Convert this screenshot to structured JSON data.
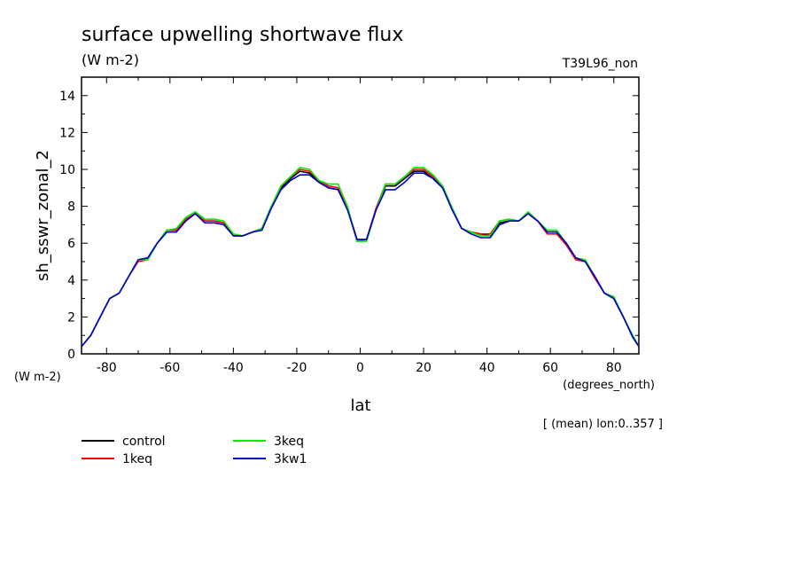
{
  "chart_data": {
    "type": "line",
    "title": "surface upwelling shortwave flux",
    "subtitle": "(W m-2)",
    "experiment_label": "T39L96_non",
    "ylabel": "sh_sswr_zonal_2",
    "yunits": "(W m-2)",
    "xlabel": "lat",
    "xunits": "(degrees_north)",
    "note": "[ (mean) lon:0..357 ]",
    "xlim": [
      -87.9,
      87.9
    ],
    "ylim": [
      0,
      15
    ],
    "xticks": [
      -80,
      -60,
      -40,
      -20,
      0,
      20,
      40,
      60,
      80
    ],
    "yticks": [
      0,
      2,
      4,
      6,
      8,
      10,
      12,
      14
    ],
    "x": [
      -87.9,
      -85,
      -82,
      -79,
      -76,
      -73,
      -70,
      -67,
      -64,
      -61,
      -58,
      -55,
      -52,
      -49,
      -46,
      -43,
      -40,
      -37,
      -34,
      -31,
      -28,
      -25,
      -22,
      -19,
      -16,
      -13,
      -10,
      -7,
      -4,
      -1,
      2,
      5,
      8,
      11,
      14,
      17,
      20,
      23,
      26,
      29,
      32,
      35,
      38,
      41,
      44,
      47,
      50,
      53,
      56,
      59,
      62,
      65,
      68,
      71,
      74,
      77,
      80,
      83,
      86,
      87.9
    ],
    "series": [
      {
        "name": "control",
        "color": "#000000",
        "values": [
          0.4,
          1.0,
          2.0,
          3.0,
          3.3,
          4.2,
          5.1,
          5.2,
          6.0,
          6.7,
          6.7,
          7.3,
          7.6,
          7.2,
          7.2,
          7.1,
          6.4,
          6.4,
          6.6,
          6.8,
          8.0,
          9.0,
          9.5,
          9.9,
          9.8,
          9.3,
          9.0,
          8.9,
          7.9,
          6.2,
          6.2,
          7.8,
          9.1,
          9.1,
          9.5,
          9.9,
          9.9,
          9.5,
          9.0,
          7.9,
          6.8,
          6.6,
          6.5,
          6.4,
          7.1,
          7.2,
          7.2,
          7.6,
          7.2,
          6.6,
          6.6,
          6.0,
          5.2,
          5.0,
          4.2,
          3.3,
          3.0,
          2.0,
          0.9,
          0.4
        ]
      },
      {
        "name": "1keq",
        "color": "#ff0000",
        "values": [
          0.4,
          1.0,
          2.0,
          3.0,
          3.3,
          4.2,
          5.0,
          5.1,
          6.0,
          6.7,
          6.7,
          7.3,
          7.6,
          7.2,
          7.2,
          7.1,
          6.4,
          6.4,
          6.6,
          6.8,
          8.0,
          9.1,
          9.6,
          10.0,
          9.9,
          9.4,
          9.1,
          9.0,
          7.9,
          6.1,
          6.2,
          7.9,
          9.2,
          9.2,
          9.6,
          10.0,
          10.0,
          9.6,
          9.1,
          7.9,
          6.8,
          6.6,
          6.5,
          6.5,
          7.2,
          7.3,
          7.2,
          7.6,
          7.2,
          6.5,
          6.5,
          5.9,
          5.1,
          5.0,
          4.1,
          3.3,
          3.0,
          2.0,
          0.9,
          0.4
        ]
      },
      {
        "name": "3keq",
        "color": "#00ee00",
        "values": [
          0.4,
          1.0,
          2.0,
          3.0,
          3.3,
          4.2,
          5.1,
          5.1,
          6.0,
          6.7,
          6.8,
          7.4,
          7.7,
          7.3,
          7.3,
          7.2,
          6.5,
          6.4,
          6.6,
          6.8,
          8.0,
          9.1,
          9.6,
          10.1,
          10.0,
          9.4,
          9.2,
          9.2,
          8.0,
          6.1,
          6.1,
          7.8,
          9.2,
          9.2,
          9.6,
          10.1,
          10.1,
          9.7,
          9.1,
          7.9,
          6.8,
          6.6,
          6.4,
          6.4,
          7.2,
          7.3,
          7.2,
          7.7,
          7.2,
          6.7,
          6.7,
          6.0,
          5.2,
          5.1,
          4.2,
          3.3,
          3.1,
          2.0,
          1.0,
          0.4
        ]
      },
      {
        "name": "3kw1",
        "color": "#0000cc",
        "values": [
          0.4,
          1.0,
          2.0,
          3.0,
          3.3,
          4.2,
          5.1,
          5.2,
          6.0,
          6.6,
          6.6,
          7.2,
          7.6,
          7.1,
          7.1,
          7.0,
          6.4,
          6.4,
          6.6,
          6.7,
          7.9,
          8.9,
          9.4,
          9.7,
          9.7,
          9.3,
          9.0,
          8.9,
          7.8,
          6.2,
          6.2,
          7.8,
          8.9,
          8.9,
          9.3,
          9.8,
          9.8,
          9.5,
          9.0,
          7.8,
          6.8,
          6.5,
          6.3,
          6.3,
          7.0,
          7.2,
          7.2,
          7.6,
          7.2,
          6.6,
          6.6,
          6.0,
          5.2,
          5.0,
          4.2,
          3.3,
          3.0,
          2.0,
          0.9,
          0.4
        ]
      }
    ],
    "grid": false,
    "legend_position": "bottom-left"
  }
}
